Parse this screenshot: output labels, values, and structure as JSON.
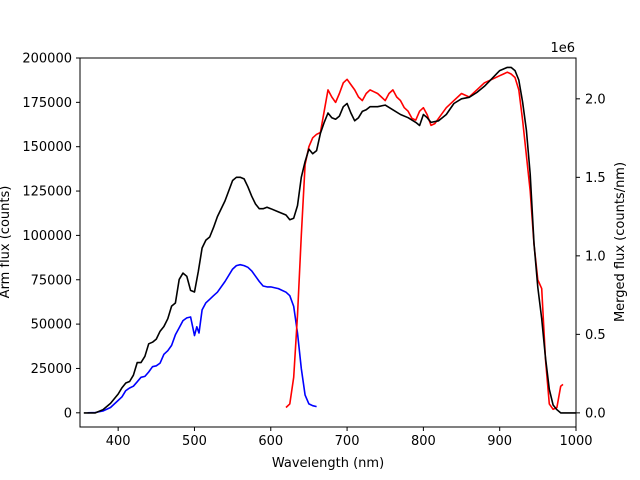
{
  "chart_data": {
    "type": "line",
    "xlabel": "Wavelength (nm)",
    "ylabel_left": "Arm flux (counts)",
    "ylabel_right": "Merged flux (counts/nm)",
    "right_axis_multiplier": "1e6",
    "xlim": [
      350,
      1000
    ],
    "ylim_left": [
      -8000,
      200000
    ],
    "ylim_right": [
      -0.09,
      2.26
    ],
    "x_ticks": [
      400,
      500,
      600,
      700,
      800,
      900,
      1000
    ],
    "y_ticks_left": [
      0,
      25000,
      50000,
      75000,
      100000,
      125000,
      150000,
      175000,
      200000
    ],
    "y_ticks_right": [
      0.0,
      0.5,
      1.0,
      1.5,
      2.0
    ],
    "grid": false,
    "series": [
      {
        "color": "#0000ff",
        "axis": "left",
        "x": [
          360,
          370,
          380,
          390,
          400,
          405,
          410,
          415,
          420,
          425,
          430,
          435,
          440,
          445,
          450,
          455,
          460,
          465,
          470,
          475,
          480,
          485,
          490,
          495,
          500,
          503,
          506,
          510,
          515,
          520,
          525,
          530,
          540,
          550,
          555,
          560,
          565,
          570,
          575,
          580,
          585,
          590,
          595,
          600,
          610,
          620,
          625,
          630,
          635,
          640,
          645,
          650,
          655,
          660
        ],
        "y": [
          0,
          200,
          1000,
          3000,
          7000,
          9000,
          12500,
          14000,
          15000,
          17500,
          20000,
          20500,
          23000,
          26000,
          26500,
          28000,
          33000,
          35000,
          38000,
          44000,
          48000,
          52000,
          53500,
          54000,
          43500,
          48500,
          45000,
          58000,
          62000,
          64000,
          66000,
          68000,
          74000,
          81000,
          83000,
          83500,
          83000,
          82000,
          80000,
          77000,
          74000,
          71500,
          71000,
          71000,
          70000,
          68000,
          66000,
          60000,
          45000,
          25000,
          10000,
          5000,
          4000,
          3500
        ]
      },
      {
        "color": "#ff0000",
        "axis": "left",
        "x": [
          620,
          625,
          630,
          635,
          640,
          645,
          650,
          655,
          660,
          665,
          670,
          675,
          680,
          685,
          690,
          695,
          700,
          705,
          710,
          715,
          720,
          725,
          730,
          735,
          740,
          745,
          750,
          755,
          760,
          765,
          770,
          775,
          780,
          785,
          790,
          795,
          800,
          805,
          810,
          815,
          820,
          830,
          840,
          850,
          860,
          870,
          880,
          890,
          900,
          905,
          910,
          915,
          920,
          925,
          930,
          935,
          940,
          945,
          950,
          955,
          960,
          965,
          970,
          975,
          980,
          983
        ],
        "y": [
          3000,
          5000,
          20000,
          55000,
          100000,
          140000,
          150000,
          155000,
          157000,
          158000,
          170000,
          182000,
          178000,
          175000,
          180000,
          186000,
          188000,
          185000,
          182000,
          178000,
          176000,
          180000,
          182000,
          181000,
          180000,
          178000,
          176000,
          180000,
          182000,
          178000,
          176000,
          172000,
          170000,
          166000,
          165000,
          170000,
          172000,
          168000,
          162000,
          163000,
          166000,
          172000,
          176000,
          180000,
          178000,
          182000,
          186000,
          188000,
          190000,
          191000,
          192000,
          191000,
          189000,
          182000,
          165000,
          145000,
          125000,
          95000,
          75000,
          70000,
          30000,
          5000,
          2000,
          3000,
          15000,
          16000
        ]
      },
      {
        "color": "#000000",
        "axis": "right",
        "x": [
          355,
          370,
          380,
          390,
          400,
          405,
          410,
          415,
          420,
          425,
          430,
          435,
          440,
          445,
          450,
          455,
          460,
          465,
          470,
          475,
          480,
          485,
          490,
          495,
          500,
          505,
          510,
          515,
          520,
          525,
          530,
          540,
          550,
          555,
          560,
          565,
          570,
          575,
          580,
          585,
          590,
          595,
          600,
          610,
          620,
          625,
          630,
          635,
          640,
          645,
          650,
          655,
          660,
          665,
          670,
          675,
          680,
          685,
          690,
          695,
          700,
          705,
          710,
          715,
          720,
          725,
          730,
          740,
          750,
          760,
          770,
          780,
          790,
          795,
          800,
          805,
          810,
          820,
          830,
          840,
          850,
          860,
          870,
          880,
          890,
          900,
          910,
          915,
          920,
          925,
          930,
          935,
          940,
          945,
          950,
          955,
          960,
          965,
          970,
          975,
          980,
          990,
          1000
        ],
        "y": [
          0,
          0,
          0.02,
          0.06,
          0.12,
          0.16,
          0.19,
          0.2,
          0.24,
          0.32,
          0.32,
          0.36,
          0.44,
          0.45,
          0.47,
          0.52,
          0.55,
          0.6,
          0.68,
          0.7,
          0.85,
          0.89,
          0.87,
          0.78,
          0.77,
          0.9,
          1.05,
          1.1,
          1.12,
          1.18,
          1.25,
          1.35,
          1.48,
          1.5,
          1.5,
          1.49,
          1.44,
          1.38,
          1.33,
          1.3,
          1.3,
          1.31,
          1.3,
          1.28,
          1.26,
          1.23,
          1.24,
          1.32,
          1.5,
          1.6,
          1.68,
          1.65,
          1.67,
          1.78,
          1.85,
          1.91,
          1.88,
          1.87,
          1.89,
          1.95,
          1.97,
          1.91,
          1.86,
          1.88,
          1.92,
          1.93,
          1.95,
          1.95,
          1.96,
          1.93,
          1.9,
          1.88,
          1.85,
          1.83,
          1.9,
          1.88,
          1.85,
          1.86,
          1.9,
          1.97,
          2.0,
          2.01,
          2.04,
          2.08,
          2.13,
          2.18,
          2.2,
          2.2,
          2.18,
          2.12,
          1.98,
          1.8,
          1.52,
          1.08,
          0.8,
          0.6,
          0.35,
          0.15,
          0.05,
          0.02,
          0.0,
          0.0,
          0.0
        ]
      }
    ]
  }
}
